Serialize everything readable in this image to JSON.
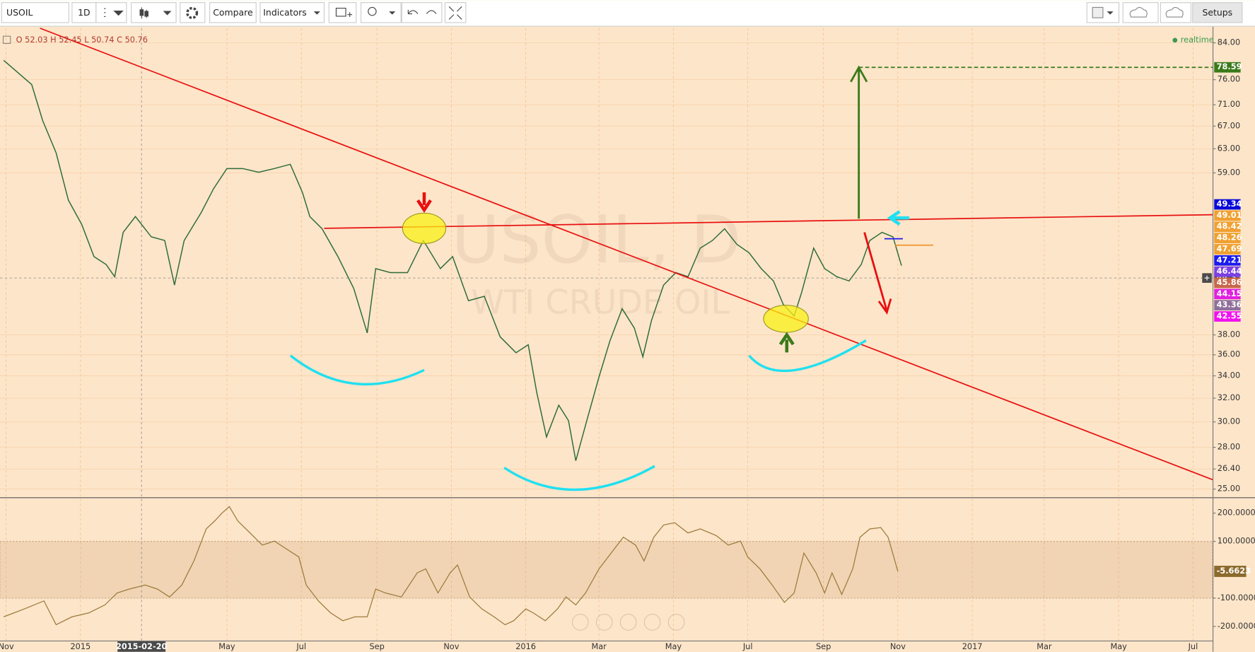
{
  "toolbar": {
    "symbol": "USOIL",
    "interval": "1D",
    "compare": "Compare",
    "indicators": "Indicators",
    "setups": "Setups"
  },
  "status": "realtime",
  "ohlc_legend": "O 52.03 H 52.45 L 50.74 C 50.76",
  "chart_data": [
    {
      "type": "line",
      "title": "USOIL, D",
      "subtitle": "WTI CRUDE OIL",
      "color": "#2e6b3a",
      "log_scale": true,
      "grid": true,
      "xlim": [
        "2014-10-27",
        "2017-07-17"
      ],
      "xticks": [
        {
          "value": "2014-11-01",
          "label": "Nov"
        },
        {
          "value": "2015-01-01",
          "label": "2015"
        },
        {
          "value": "2015-05-01",
          "label": "May"
        },
        {
          "value": "2015-07-01",
          "label": "Jul"
        },
        {
          "value": "2015-09-01",
          "label": "Sep"
        },
        {
          "value": "2015-11-01",
          "label": "Nov"
        },
        {
          "value": "2016-01-01",
          "label": "2016"
        },
        {
          "value": "2016-03-01",
          "label": "Mar"
        },
        {
          "value": "2016-05-01",
          "label": "May"
        },
        {
          "value": "2016-07-01",
          "label": "Jul"
        },
        {
          "value": "2016-09-01",
          "label": "Sep"
        },
        {
          "value": "2016-11-01",
          "label": "Nov"
        },
        {
          "value": "2017-01-01",
          "label": "2017"
        },
        {
          "value": "2017-03-01",
          "label": "Mar"
        },
        {
          "value": "2017-05-01",
          "label": "May"
        },
        {
          "value": "2017-07-01",
          "label": "Jul"
        }
      ],
      "ylim": [
        24.5,
        87.4
      ],
      "yticks": [
        {
          "value": 84,
          "label": "84.00"
        },
        {
          "value": 76,
          "label": "76.00"
        },
        {
          "value": 71,
          "label": "71.00"
        },
        {
          "value": 67,
          "label": "67.00"
        },
        {
          "value": 63,
          "label": "63.00"
        },
        {
          "value": 59,
          "label": "59.00"
        },
        {
          "value": 38,
          "label": "38.00"
        },
        {
          "value": 36,
          "label": "36.00"
        },
        {
          "value": 34,
          "label": "34.00"
        },
        {
          "value": 32,
          "label": "32.00"
        },
        {
          "value": 30,
          "label": "30.00"
        },
        {
          "value": 28,
          "label": "28.00"
        },
        {
          "value": 26.4,
          "label": "26.40"
        },
        {
          "value": 25,
          "label": "25.00"
        }
      ],
      "x": [
        "2014-10-30",
        "2014-11-22",
        "2014-12-01",
        "2014-12-12",
        "2014-12-22",
        "2015-01-02",
        "2015-01-12",
        "2015-01-22",
        "2015-01-29",
        "2015-02-05",
        "2015-02-15",
        "2015-02-28",
        "2015-03-11",
        "2015-03-19",
        "2015-03-27",
        "2015-04-10",
        "2015-04-20",
        "2015-05-01",
        "2015-05-14",
        "2015-05-27",
        "2015-06-09",
        "2015-06-22",
        "2015-07-02",
        "2015-07-08",
        "2015-07-18",
        "2015-07-31",
        "2015-08-13",
        "2015-08-24",
        "2015-08-31",
        "2015-09-12",
        "2015-09-26",
        "2015-10-09",
        "2015-10-23",
        "2015-11-02",
        "2015-11-15",
        "2015-11-28",
        "2015-12-11",
        "2015-12-24",
        "2016-01-03",
        "2016-01-10",
        "2016-01-18",
        "2016-01-28",
        "2016-02-05",
        "2016-02-11",
        "2016-02-20",
        "2016-03-01",
        "2016-03-10",
        "2016-03-20",
        "2016-03-30",
        "2016-04-06",
        "2016-04-13",
        "2016-04-23",
        "2016-05-03",
        "2016-05-13",
        "2016-05-23",
        "2016-06-02",
        "2016-06-12",
        "2016-06-22",
        "2016-07-02",
        "2016-07-12",
        "2016-07-22",
        "2016-07-30",
        "2016-08-08",
        "2016-08-14",
        "2016-08-24",
        "2016-09-02",
        "2016-09-12",
        "2016-09-22",
        "2016-10-02",
        "2016-10-09",
        "2016-10-19",
        "2016-10-28",
        "2016-11-04"
      ],
      "values": [
        80.1,
        75.0,
        68.0,
        62.3,
        54.8,
        51.3,
        47.0,
        46.0,
        44.5,
        50.2,
        52.4,
        49.6,
        49.1,
        43.5,
        49.1,
        53.0,
        56.5,
        59.7,
        59.7,
        59.1,
        59.7,
        60.4,
        55.9,
        52.4,
        50.7,
        47.0,
        43.1,
        38.2,
        45.5,
        45.0,
        45.0,
        49.1,
        45.5,
        47.0,
        41.7,
        42.2,
        37.8,
        36.2,
        37.0,
        32.5,
        28.8,
        31.4,
        30.1,
        27.0,
        30.1,
        33.9,
        37.4,
        40.8,
        38.7,
        35.8,
        39.5,
        43.5,
        45.0,
        44.5,
        48.1,
        49.1,
        50.7,
        48.6,
        47.5,
        45.5,
        44.0,
        41.3,
        40.0,
        42.6,
        48.1,
        45.5,
        44.5,
        44.0,
        46.0,
        49.1,
        50.2,
        49.6,
        45.86
      ],
      "price_labels": [
        {
          "value": 78.59,
          "color": "#3a7a1a"
        },
        {
          "value": 49.34,
          "color": "#0a0ad8"
        },
        {
          "value": 49.01,
          "color": "#f0a030"
        },
        {
          "value": 48.42,
          "color": "#f0a030"
        },
        {
          "value": 48.26,
          "color": "#f0a030"
        },
        {
          "value": 47.69,
          "color": "#f0a030"
        },
        {
          "value": 47.21,
          "color": "#1a1af0"
        },
        {
          "value": 46.44,
          "color": "#7b3fe4"
        },
        {
          "value": 45.86,
          "color": "#c8674a"
        },
        {
          "value": 44.15,
          "color": "#e020e0"
        },
        {
          "value": 43.36,
          "color": "#8e6f9a"
        },
        {
          "value": 42.55,
          "color": "#f010f0"
        }
      ],
      "crosshair": {
        "x": "2015-02-20",
        "y": 44.35
      }
    },
    {
      "type": "line",
      "color": "#9b7a3c",
      "ylim": [
        -250,
        250
      ],
      "yticks": [
        {
          "value": 200,
          "label": "200.0000"
        },
        {
          "value": 100,
          "label": "100.0000"
        },
        {
          "value": -100,
          "label": "-100.0000"
        },
        {
          "value": -200,
          "label": "-200.0000"
        }
      ],
      "x": [
        "2014-10-30",
        "2014-11-16",
        "2014-12-02",
        "2014-12-12",
        "2014-12-25",
        "2015-01-08",
        "2015-01-21",
        "2015-01-31",
        "2015-02-10",
        "2015-02-23",
        "2015-03-05",
        "2015-03-15",
        "2015-03-25",
        "2015-04-04",
        "2015-04-14",
        "2015-04-21",
        "2015-04-27",
        "2015-05-03",
        "2015-05-10",
        "2015-05-20",
        "2015-05-30",
        "2015-06-09",
        "2015-06-19",
        "2015-06-29",
        "2015-07-05",
        "2015-07-15",
        "2015-07-25",
        "2015-08-04",
        "2015-08-14",
        "2015-08-24",
        "2015-08-31",
        "2015-09-08",
        "2015-09-21",
        "2015-10-04",
        "2015-10-11",
        "2015-10-21",
        "2015-10-31",
        "2015-11-06",
        "2015-11-16",
        "2015-11-26",
        "2015-12-06",
        "2015-12-15",
        "2015-12-22",
        "2016-01-01",
        "2016-01-07",
        "2016-01-17",
        "2016-01-27",
        "2016-02-03",
        "2016-02-11",
        "2016-02-19",
        "2016-03-01",
        "2016-03-11",
        "2016-03-21",
        "2016-03-31",
        "2016-04-07",
        "2016-04-15",
        "2016-04-23",
        "2016-05-02",
        "2016-05-13",
        "2016-05-23",
        "2016-06-05",
        "2016-06-15",
        "2016-06-25",
        "2016-07-01",
        "2016-07-11",
        "2016-07-21",
        "2016-07-31",
        "2016-08-08",
        "2016-08-16",
        "2016-08-26",
        "2016-09-02",
        "2016-09-08",
        "2016-09-16",
        "2016-09-25",
        "2016-10-01",
        "2016-10-09",
        "2016-10-18",
        "2016-10-24",
        "2016-11-01"
      ],
      "values": [
        -166,
        -138,
        -110,
        -194,
        -166,
        -152,
        -124,
        -82,
        -68,
        -54,
        -68,
        -96,
        -54,
        31,
        144,
        172,
        200,
        223,
        172,
        130,
        87,
        101,
        73,
        45,
        -54,
        -110,
        -152,
        -180,
        -166,
        -166,
        -68,
        -82,
        -96,
        -11,
        3,
        -82,
        -11,
        17,
        -96,
        -138,
        -166,
        -194,
        -180,
        -138,
        -152,
        -180,
        -138,
        -96,
        -124,
        -82,
        3,
        59,
        115,
        87,
        31,
        115,
        158,
        166,
        130,
        144,
        121,
        87,
        101,
        45,
        3,
        -54,
        -115,
        -82,
        59,
        -11,
        -82,
        -11,
        -87,
        3,
        115,
        144,
        149,
        115,
        -5.6623
      ]
    }
  ]
}
